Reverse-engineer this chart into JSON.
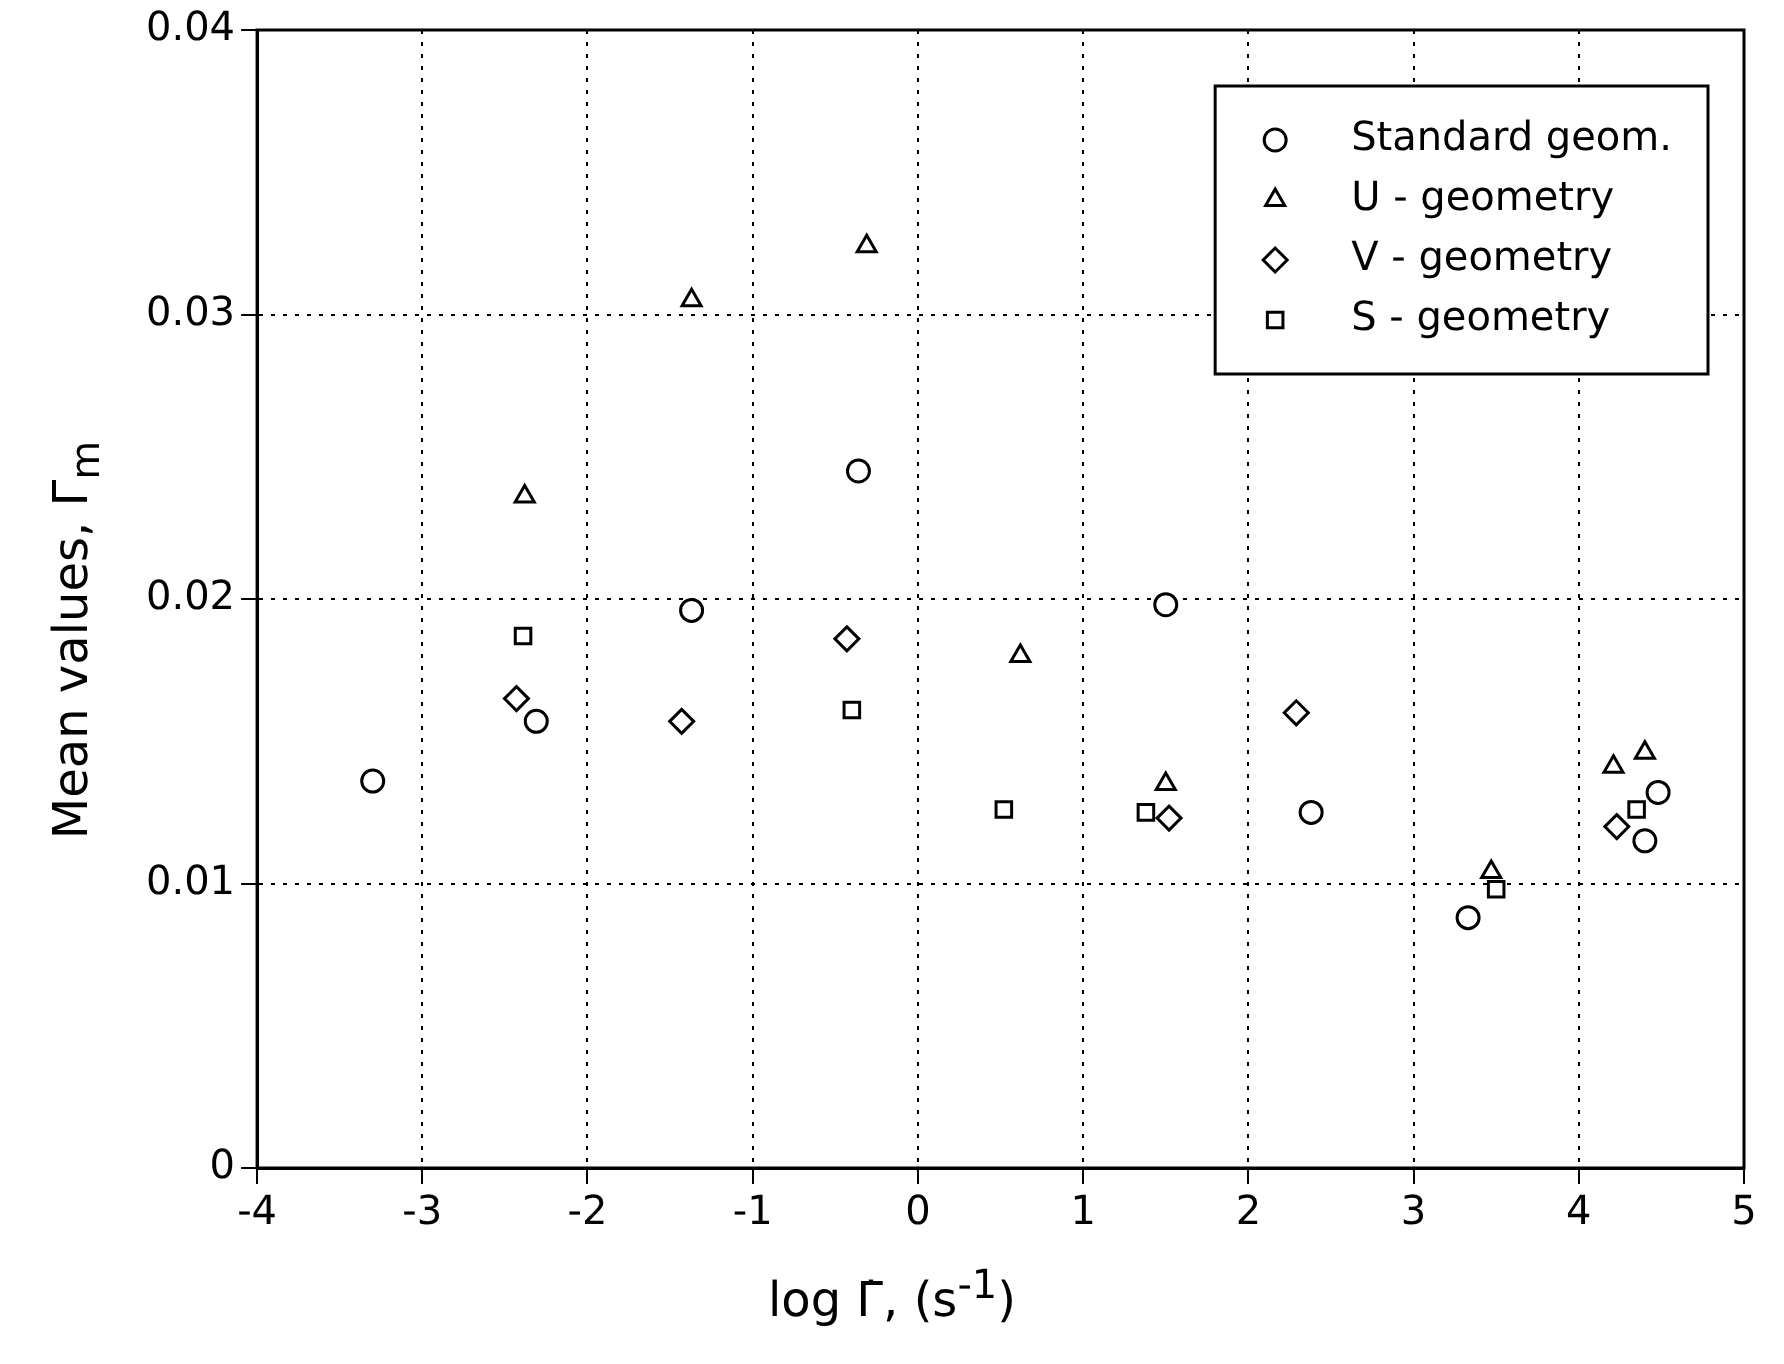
{
  "chart_data": {
    "type": "scatter",
    "xlabel": "log Γ̇, (s$^{-1}$)",
    "ylabel": "Mean values, Γ$_{m}$",
    "xlim": [
      -4,
      5
    ],
    "xticks": [
      -4,
      -3,
      -2,
      -1,
      0,
      1,
      2,
      3,
      4,
      5
    ],
    "ylim": [
      0,
      0.04
    ],
    "yticks": [
      0,
      0.01,
      0.02,
      0.03,
      0.04
    ],
    "grid": true,
    "legend": "top right",
    "series": [
      {
        "name": "Standard geom.",
        "color": "#000000",
        "marker": "circle",
        "x": [
          -3.3,
          -2.31,
          -1.37,
          -0.36,
          1.5,
          2.38,
          3.33,
          4.48,
          4.4
        ],
        "values": [
          0.0136,
          0.0157,
          0.0196,
          0.0245,
          0.0198,
          0.0125,
          0.0088,
          0.0132,
          0.0115
        ]
      },
      {
        "name": "U - geometry",
        "color": "#000000",
        "marker": "triangle",
        "x": [
          -2.38,
          -1.37,
          -0.31,
          0.62,
          1.5,
          3.47,
          4.21,
          4.4
        ],
        "values": [
          0.0236,
          0.0305,
          0.0324,
          0.018,
          0.0135,
          0.0104,
          0.0141,
          0.0146
        ]
      },
      {
        "name": "V - geometry",
        "color": "#000000",
        "marker": "diamond",
        "x": [
          -2.43,
          -1.43,
          -0.43,
          1.52,
          2.29,
          3.45,
          4.23
        ],
        "values": [
          0.0165,
          0.0157,
          0.0186,
          0.0123,
          0.016,
          null,
          0.012
        ]
      },
      {
        "name": "S - geometry",
        "color": "#000000",
        "marker": "square",
        "x": [
          -2.39,
          -0.4,
          0.52,
          1.38,
          3.5,
          4.35
        ],
        "values": [
          0.0187,
          0.0161,
          0.0126,
          0.0125,
          0.0098,
          0.0126
        ]
      }
    ]
  }
}
